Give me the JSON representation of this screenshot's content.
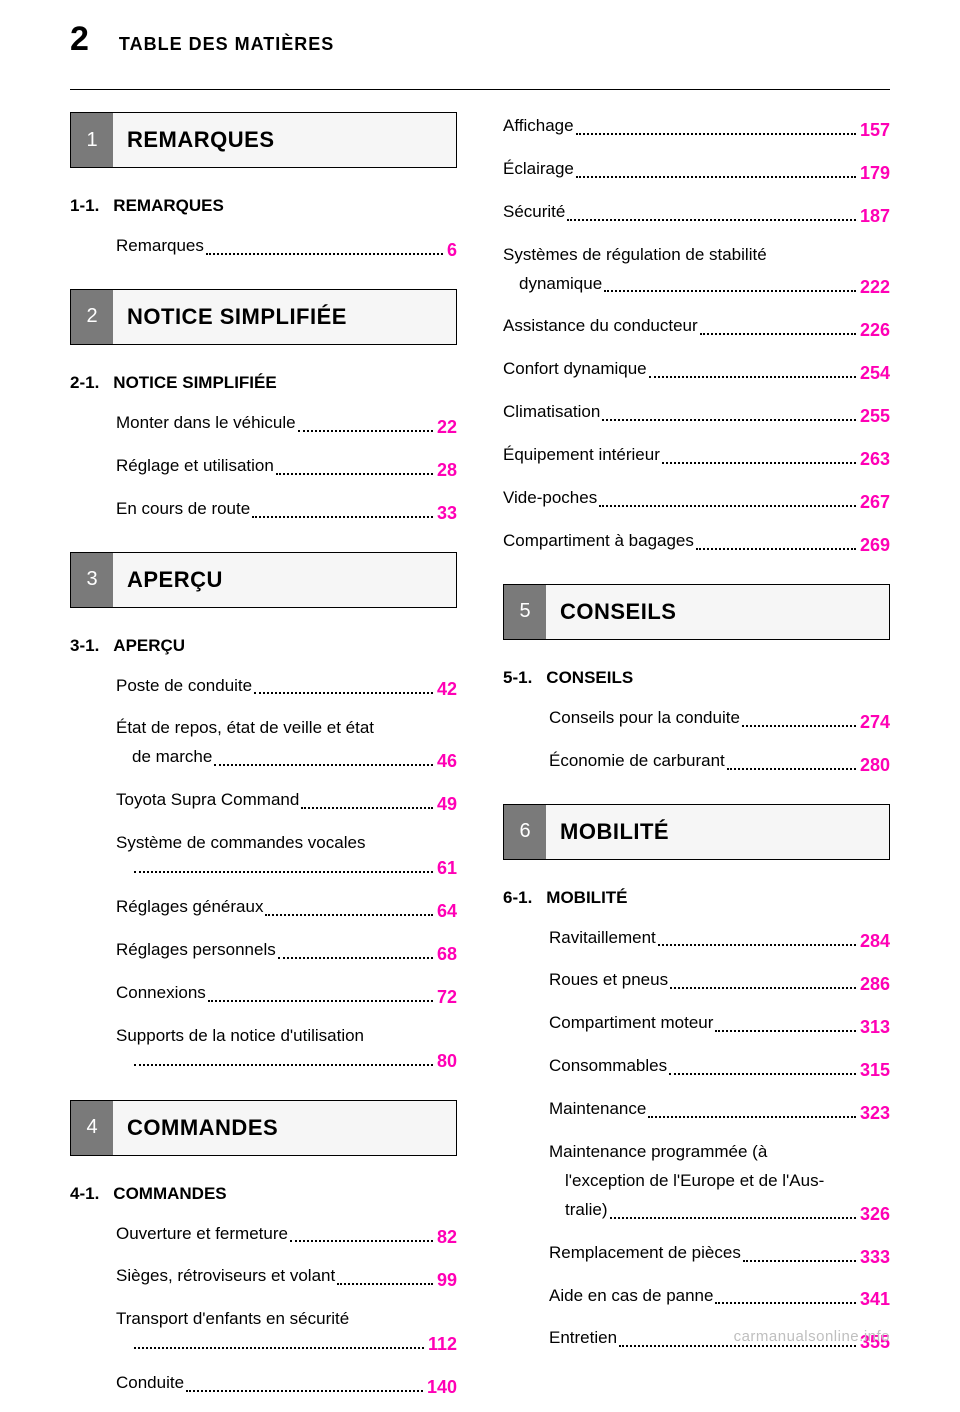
{
  "page_number": "2",
  "header_title": "TABLE DES MATIÈRES",
  "footer": "carmanualsonline.info",
  "colors": {
    "page_number_color": "#ff00b5",
    "banner_num_bg": "#7a7a7a",
    "banner_bg": "#f6f6f6",
    "text": "#000000",
    "footer": "#bfbfbf",
    "background": "#ffffff"
  },
  "typography": {
    "page_number_fontsize": 34,
    "header_title_fontsize": 18,
    "banner_title_fontsize": 22,
    "subhead_fontsize": 17,
    "entry_fontsize": 17,
    "page_fontsize": 18,
    "footer_fontsize": 15
  },
  "sections": [
    {
      "num": "1",
      "title": "REMARQUES",
      "subsections": [
        {
          "num": "1-1.",
          "title": "REMARQUES",
          "entries": [
            {
              "label": "Remarques",
              "page": "6"
            }
          ]
        }
      ]
    },
    {
      "num": "2",
      "title": "NOTICE SIMPLIFIÉE",
      "subsections": [
        {
          "num": "2-1.",
          "title": "NOTICE SIMPLIFIÉE",
          "entries": [
            {
              "label": "Monter dans le véhicule",
              "page": "22"
            },
            {
              "label": "Réglage et utilisation",
              "page": "28"
            },
            {
              "label": "En cours de route",
              "page": "33"
            }
          ]
        }
      ]
    },
    {
      "num": "3",
      "title": "APERÇU",
      "subsections": [
        {
          "num": "3-1.",
          "title": "APERÇU",
          "entries": [
            {
              "label": "Poste de conduite",
              "page": "42"
            },
            {
              "label": "État de repos, état de veille et état",
              "label2": "de marche",
              "page": "46"
            },
            {
              "label": "Toyota Supra Command",
              "page": "49"
            },
            {
              "label": "Système de commandes vocales",
              "label2": "",
              "page": "61"
            },
            {
              "label": "Réglages généraux",
              "page": "64"
            },
            {
              "label": "Réglages personnels",
              "page": "68"
            },
            {
              "label": "Connexions",
              "page": "72"
            },
            {
              "label": "Supports de la notice d'utilisation",
              "label2": "",
              "page": "80"
            }
          ]
        }
      ]
    },
    {
      "num": "4",
      "title": "COMMANDES",
      "subsections": [
        {
          "num": "4-1.",
          "title": "COMMANDES",
          "entries": [
            {
              "label": "Ouverture et fermeture",
              "page": "82"
            },
            {
              "label": "Sièges, rétroviseurs et volant",
              "page": "99"
            },
            {
              "label": "Transport d'enfants en sécurité",
              "label2": "",
              "page": "112"
            },
            {
              "label": "Conduite",
              "page": "140"
            },
            {
              "label": "Affichage",
              "page": "157"
            },
            {
              "label": "Éclairage",
              "page": "179"
            },
            {
              "label": "Sécurité",
              "page": "187"
            },
            {
              "label": "Systèmes de régulation de stabilité",
              "label2": "dynamique",
              "page": "222"
            },
            {
              "label": "Assistance du conducteur",
              "page": "226"
            },
            {
              "label": "Confort dynamique",
              "page": "254"
            },
            {
              "label": "Climatisation",
              "page": "255"
            },
            {
              "label": "Équipement intérieur",
              "page": "263"
            },
            {
              "label": "Vide-poches",
              "page": "267"
            },
            {
              "label": "Compartiment à bagages",
              "page": "269"
            }
          ]
        }
      ]
    },
    {
      "num": "5",
      "title": "CONSEILS",
      "subsections": [
        {
          "num": "5-1.",
          "title": "CONSEILS",
          "entries": [
            {
              "label": "Conseils pour la conduite",
              "page": "274"
            },
            {
              "label": "Économie de carburant",
              "page": "280"
            }
          ]
        }
      ]
    },
    {
      "num": "6",
      "title": "MOBILITÉ",
      "subsections": [
        {
          "num": "6-1.",
          "title": "MOBILITÉ",
          "entries": [
            {
              "label": "Ravitaillement",
              "page": "284"
            },
            {
              "label": "Roues et pneus",
              "page": "286"
            },
            {
              "label": "Compartiment moteur",
              "page": "313"
            },
            {
              "label": "Consommables",
              "page": "315"
            },
            {
              "label": "Maintenance",
              "page": "323"
            },
            {
              "label": "Maintenance programmée (à",
              "label2": "l'exception de l'Europe et de l'Aus-",
              "label3": "tralie)",
              "page": "326"
            },
            {
              "label": "Remplacement de pièces",
              "page": "333"
            },
            {
              "label": "Aide en cas de panne",
              "page": "341"
            },
            {
              "label": "Entretien",
              "page": "355"
            }
          ]
        }
      ]
    }
  ],
  "layout": {
    "column_split": {
      "left": [
        {
          "section": 0
        },
        {
          "section": 1
        },
        {
          "section": 2
        },
        {
          "section": 3,
          "entries_through": 4
        }
      ],
      "right": [
        {
          "section": 3,
          "entries_from": 4
        },
        {
          "section": 4
        },
        {
          "section": 5
        }
      ]
    }
  }
}
